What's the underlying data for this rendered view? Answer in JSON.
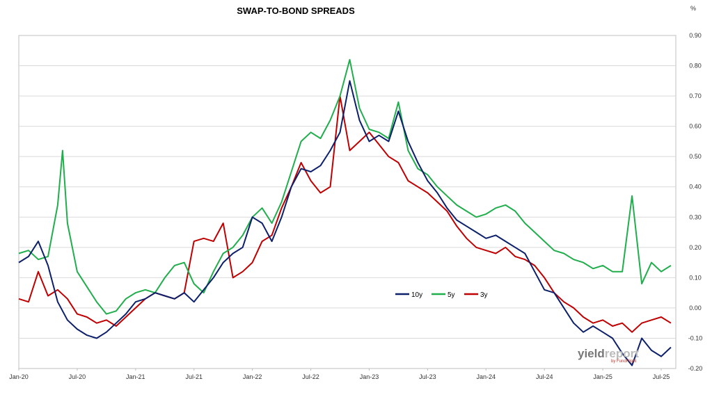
{
  "chart_data": {
    "type": "line",
    "title": "SWAP-TO-BOND SPREADS",
    "unit_label": "%",
    "ylim": [
      -0.2,
      0.9
    ],
    "y_axis_side": "right",
    "y_ticks": [
      "0.90",
      "0.80",
      "0.70",
      "0.60",
      "0.50",
      "0.40",
      "0.30",
      "0.20",
      "0.10",
      "0.00",
      "-0.10",
      "-0.20"
    ],
    "x_ticks": [
      "Jan-20",
      "Jul-20",
      "Jan-21",
      "Jul-21",
      "Jan-22",
      "Jul-22",
      "Jan-23",
      "Jul-23",
      "Jan-24",
      "Jul-24",
      "Jan-25",
      "Jul-25"
    ],
    "grid": "horizontal",
    "legend_position": "inside-right-center",
    "x_unit": "months since Jan-20",
    "series": [
      {
        "name": "10y",
        "color": "#0b1f6b",
        "points": [
          [
            0,
            0.15
          ],
          [
            1,
            0.17
          ],
          [
            2,
            0.22
          ],
          [
            2.5,
            0.18
          ],
          [
            3,
            0.14
          ],
          [
            4,
            0.02
          ],
          [
            5,
            -0.04
          ],
          [
            6,
            -0.07
          ],
          [
            7,
            -0.09
          ],
          [
            8,
            -0.1
          ],
          [
            9,
            -0.08
          ],
          [
            10,
            -0.05
          ],
          [
            11,
            -0.02
          ],
          [
            12,
            0.02
          ],
          [
            13,
            0.03
          ],
          [
            14,
            0.05
          ],
          [
            15,
            0.04
          ],
          [
            16,
            0.03
          ],
          [
            17,
            0.05
          ],
          [
            18,
            0.02
          ],
          [
            19,
            0.06
          ],
          [
            20,
            0.1
          ],
          [
            21,
            0.15
          ],
          [
            22,
            0.18
          ],
          [
            23,
            0.2
          ],
          [
            24,
            0.3
          ],
          [
            25,
            0.28
          ],
          [
            26,
            0.22
          ],
          [
            27,
            0.3
          ],
          [
            28,
            0.4
          ],
          [
            29,
            0.46
          ],
          [
            30,
            0.45
          ],
          [
            31,
            0.47
          ],
          [
            32,
            0.52
          ],
          [
            33,
            0.58
          ],
          [
            34,
            0.75
          ],
          [
            35,
            0.62
          ],
          [
            36,
            0.55
          ],
          [
            37,
            0.57
          ],
          [
            38,
            0.55
          ],
          [
            39,
            0.65
          ],
          [
            40,
            0.55
          ],
          [
            41,
            0.48
          ],
          [
            42,
            0.42
          ],
          [
            43,
            0.38
          ],
          [
            44,
            0.33
          ],
          [
            45,
            0.29
          ],
          [
            46,
            0.27
          ],
          [
            47,
            0.25
          ],
          [
            48,
            0.23
          ],
          [
            49,
            0.24
          ],
          [
            50,
            0.22
          ],
          [
            51,
            0.2
          ],
          [
            52,
            0.18
          ],
          [
            53,
            0.12
          ],
          [
            54,
            0.06
          ],
          [
            55,
            0.05
          ],
          [
            56,
            0.0
          ],
          [
            57,
            -0.05
          ],
          [
            58,
            -0.08
          ],
          [
            59,
            -0.06
          ],
          [
            60,
            -0.08
          ],
          [
            61,
            -0.1
          ],
          [
            62,
            -0.15
          ],
          [
            63,
            -0.19
          ],
          [
            64,
            -0.1
          ],
          [
            65,
            -0.14
          ],
          [
            66,
            -0.16
          ],
          [
            67,
            -0.13
          ]
        ]
      },
      {
        "name": "5y",
        "color": "#1fae4b",
        "points": [
          [
            0,
            0.18
          ],
          [
            1,
            0.19
          ],
          [
            2,
            0.16
          ],
          [
            3,
            0.17
          ],
          [
            4,
            0.34
          ],
          [
            4.5,
            0.52
          ],
          [
            5,
            0.28
          ],
          [
            6,
            0.12
          ],
          [
            7,
            0.07
          ],
          [
            8,
            0.02
          ],
          [
            9,
            -0.02
          ],
          [
            10,
            -0.01
          ],
          [
            11,
            0.03
          ],
          [
            12,
            0.05
          ],
          [
            13,
            0.06
          ],
          [
            14,
            0.05
          ],
          [
            15,
            0.1
          ],
          [
            16,
            0.14
          ],
          [
            17,
            0.15
          ],
          [
            18,
            0.08
          ],
          [
            19,
            0.05
          ],
          [
            20,
            0.12
          ],
          [
            21,
            0.18
          ],
          [
            22,
            0.2
          ],
          [
            23,
            0.24
          ],
          [
            24,
            0.3
          ],
          [
            25,
            0.33
          ],
          [
            26,
            0.28
          ],
          [
            27,
            0.35
          ],
          [
            28,
            0.45
          ],
          [
            29,
            0.55
          ],
          [
            30,
            0.58
          ],
          [
            31,
            0.56
          ],
          [
            32,
            0.62
          ],
          [
            33,
            0.7
          ],
          [
            34,
            0.82
          ],
          [
            35,
            0.66
          ],
          [
            36,
            0.59
          ],
          [
            37,
            0.58
          ],
          [
            38,
            0.56
          ],
          [
            39,
            0.68
          ],
          [
            40,
            0.52
          ],
          [
            41,
            0.46
          ],
          [
            42,
            0.44
          ],
          [
            43,
            0.4
          ],
          [
            44,
            0.37
          ],
          [
            45,
            0.34
          ],
          [
            46,
            0.32
          ],
          [
            47,
            0.3
          ],
          [
            48,
            0.31
          ],
          [
            49,
            0.33
          ],
          [
            50,
            0.34
          ],
          [
            51,
            0.32
          ],
          [
            52,
            0.28
          ],
          [
            53,
            0.25
          ],
          [
            54,
            0.22
          ],
          [
            55,
            0.19
          ],
          [
            56,
            0.18
          ],
          [
            57,
            0.16
          ],
          [
            58,
            0.15
          ],
          [
            59,
            0.13
          ],
          [
            60,
            0.14
          ],
          [
            61,
            0.12
          ],
          [
            62,
            0.12
          ],
          [
            63,
            0.37
          ],
          [
            64,
            0.08
          ],
          [
            65,
            0.15
          ],
          [
            66,
            0.12
          ],
          [
            67,
            0.14
          ]
        ]
      },
      {
        "name": "3y",
        "color": "#c00000",
        "points": [
          [
            0,
            0.03
          ],
          [
            1,
            0.02
          ],
          [
            2,
            0.12
          ],
          [
            3,
            0.04
          ],
          [
            4,
            0.06
          ],
          [
            5,
            0.03
          ],
          [
            6,
            -0.02
          ],
          [
            7,
            -0.03
          ],
          [
            8,
            -0.05
          ],
          [
            9,
            -0.04
          ],
          [
            10,
            -0.06
          ],
          [
            11,
            -0.03
          ],
          [
            12,
            0.0
          ],
          [
            13,
            0.03
          ],
          [
            14,
            0.05
          ],
          [
            15,
            0.04
          ],
          [
            16,
            0.03
          ],
          [
            17,
            0.05
          ],
          [
            18,
            0.22
          ],
          [
            19,
            0.23
          ],
          [
            20,
            0.22
          ],
          [
            21,
            0.28
          ],
          [
            22,
            0.1
          ],
          [
            23,
            0.12
          ],
          [
            24,
            0.15
          ],
          [
            25,
            0.22
          ],
          [
            26,
            0.24
          ],
          [
            27,
            0.33
          ],
          [
            28,
            0.4
          ],
          [
            29,
            0.48
          ],
          [
            30,
            0.42
          ],
          [
            31,
            0.38
          ],
          [
            32,
            0.4
          ],
          [
            33,
            0.7
          ],
          [
            34,
            0.52
          ],
          [
            35,
            0.55
          ],
          [
            36,
            0.58
          ],
          [
            37,
            0.54
          ],
          [
            38,
            0.5
          ],
          [
            39,
            0.48
          ],
          [
            40,
            0.42
          ],
          [
            41,
            0.4
          ],
          [
            42,
            0.38
          ],
          [
            43,
            0.35
          ],
          [
            44,
            0.32
          ],
          [
            45,
            0.27
          ],
          [
            46,
            0.23
          ],
          [
            47,
            0.2
          ],
          [
            48,
            0.19
          ],
          [
            49,
            0.18
          ],
          [
            50,
            0.2
          ],
          [
            51,
            0.17
          ],
          [
            52,
            0.16
          ],
          [
            53,
            0.14
          ],
          [
            54,
            0.1
          ],
          [
            55,
            0.05
          ],
          [
            56,
            0.02
          ],
          [
            57,
            0.0
          ],
          [
            58,
            -0.03
          ],
          [
            59,
            -0.05
          ],
          [
            60,
            -0.04
          ],
          [
            61,
            -0.06
          ],
          [
            62,
            -0.05
          ],
          [
            63,
            -0.08
          ],
          [
            64,
            -0.05
          ],
          [
            65,
            -0.04
          ],
          [
            66,
            -0.03
          ],
          [
            67,
            -0.05
          ]
        ]
      }
    ]
  },
  "watermark": {
    "main": "yieldreport",
    "sub": "by FundFlight",
    "colors": {
      "yield": "#777777",
      "report": "#bbbbbb",
      "sub": "#c0392b"
    }
  }
}
